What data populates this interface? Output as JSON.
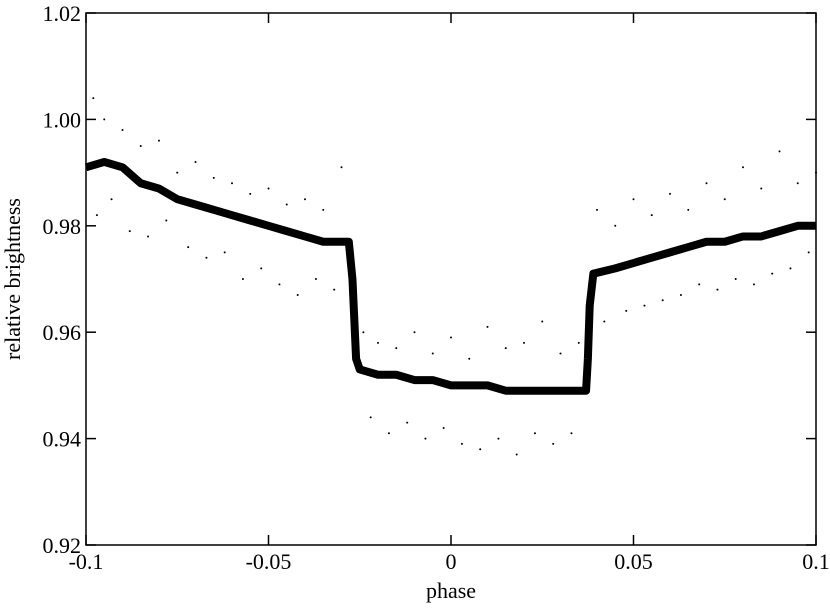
{
  "chart_data": {
    "type": "scatter",
    "x_label": "phase",
    "y_label": "relative brightness",
    "xlim": [
      -0.1,
      0.1
    ],
    "xticks": [
      -0.1,
      -0.05,
      0,
      0.05,
      0.1
    ],
    "ylim": [
      0.92,
      1.02
    ],
    "yticks": [
      0.92,
      0.94,
      0.96,
      0.98,
      {
        "value": 1,
        "label": "1.00"
      },
      1.02
    ],
    "series": [
      {
        "color": "#000000",
        "style": "thick",
        "x": [
          -0.1,
          -0.095,
          -0.09,
          -0.085,
          -0.08,
          -0.075,
          -0.07,
          -0.065,
          -0.06,
          -0.055,
          -0.05,
          -0.045,
          -0.04,
          -0.035,
          -0.03,
          -0.028,
          -0.027,
          -0.026,
          -0.025,
          -0.02,
          -0.015,
          -0.01,
          -0.005,
          0,
          0.005,
          0.01,
          0.015,
          0.02,
          0.025,
          0.03,
          0.035,
          0.037,
          0.0375,
          0.038,
          0.039,
          0.045,
          0.05,
          0.055,
          0.06,
          0.065,
          0.07,
          0.075,
          0.08,
          0.085,
          0.09,
          0.095,
          0.1
        ],
        "values": [
          0.991,
          0.992,
          0.991,
          0.988,
          0.987,
          0.985,
          0.984,
          0.983,
          0.982,
          0.981,
          0.98,
          0.979,
          0.978,
          0.977,
          0.977,
          0.977,
          0.97,
          0.955,
          0.953,
          0.952,
          0.952,
          0.951,
          0.951,
          0.95,
          0.95,
          0.95,
          0.949,
          0.949,
          0.949,
          0.949,
          0.949,
          0.949,
          0.955,
          0.965,
          0.971,
          0.972,
          0.973,
          0.974,
          0.975,
          0.976,
          0.977,
          0.977,
          0.978,
          0.978,
          0.979,
          0.98,
          0.98
        ]
      },
      {
        "color": "#000000",
        "style": "dots",
        "x": [
          -0.098,
          -0.097,
          -0.095,
          -0.093,
          -0.09,
          -0.088,
          -0.085,
          -0.083,
          -0.08,
          -0.078,
          -0.075,
          -0.072,
          -0.07,
          -0.067,
          -0.065,
          -0.062,
          -0.06,
          -0.057,
          -0.055,
          -0.052,
          -0.05,
          -0.047,
          -0.045,
          -0.042,
          -0.04,
          -0.037,
          -0.035,
          -0.032,
          -0.03,
          -0.028,
          -0.024,
          -0.022,
          -0.02,
          -0.017,
          -0.015,
          -0.012,
          -0.01,
          -0.007,
          -0.005,
          -0.002,
          0,
          0.003,
          0.005,
          0.008,
          0.01,
          0.013,
          0.015,
          0.018,
          0.02,
          0.023,
          0.025,
          0.028,
          0.03,
          0.033,
          0.035,
          0.04,
          0.042,
          0.045,
          0.048,
          0.05,
          0.053,
          0.055,
          0.058,
          0.06,
          0.063,
          0.065,
          0.068,
          0.07,
          0.073,
          0.075,
          0.078,
          0.08,
          0.083,
          0.085,
          0.088,
          0.09,
          0.093,
          0.095,
          0.098,
          0.1
        ],
        "values": [
          1.004,
          0.982,
          1,
          0.985,
          0.998,
          0.979,
          0.995,
          0.978,
          0.996,
          0.981,
          0.99,
          0.976,
          0.992,
          0.974,
          0.989,
          0.975,
          0.988,
          0.97,
          0.986,
          0.972,
          0.987,
          0.969,
          0.984,
          0.967,
          0.985,
          0.97,
          0.983,
          0.968,
          0.991,
          0.972,
          0.96,
          0.944,
          0.958,
          0.941,
          0.957,
          0.943,
          0.96,
          0.94,
          0.956,
          0.942,
          0.959,
          0.939,
          0.955,
          0.938,
          0.961,
          0.94,
          0.957,
          0.937,
          0.958,
          0.941,
          0.962,
          0.939,
          0.956,
          0.941,
          0.958,
          0.983,
          0.962,
          0.98,
          0.964,
          0.985,
          0.965,
          0.982,
          0.966,
          0.986,
          0.967,
          0.983,
          0.969,
          0.988,
          0.968,
          0.985,
          0.97,
          0.991,
          0.969,
          0.987,
          0.971,
          0.994,
          0.972,
          0.988,
          0.975,
          0.99
        ]
      }
    ]
  }
}
